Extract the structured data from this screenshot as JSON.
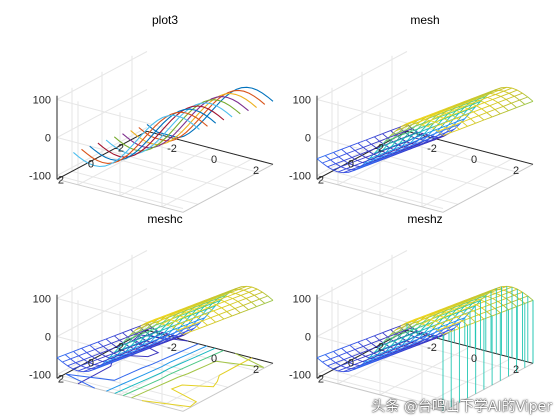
{
  "chart_data": [
    {
      "type": "line3d",
      "title": "plot3",
      "function": "z = 100 * sin(x) * ... (sinusoidal surface, lines along x)",
      "x_ticks": [
        "-2",
        "0",
        "2"
      ],
      "y_ticks": [
        "-2",
        "0",
        "2"
      ],
      "z_ticks": [
        "-100",
        "0",
        "100"
      ],
      "xlim": [
        -3,
        3
      ],
      "ylim": [
        -3,
        3
      ],
      "zlim": [
        -110,
        110
      ],
      "line_count": 10
    },
    {
      "type": "mesh",
      "title": "mesh",
      "x_ticks": [
        "-2",
        "0",
        "2"
      ],
      "y_ticks": [
        "-2",
        "0",
        "2"
      ],
      "z_ticks": [
        "-100",
        "0",
        "100"
      ],
      "xlim": [
        -3,
        3
      ],
      "ylim": [
        -3,
        3
      ],
      "zlim": [
        -110,
        110
      ]
    },
    {
      "type": "meshc",
      "title": "meshc",
      "x_ticks": [
        "-2",
        "0",
        "2"
      ],
      "y_ticks": [
        "-2",
        "0",
        "2"
      ],
      "z_ticks": [
        "-100",
        "0",
        "100"
      ],
      "xlim": [
        -3,
        3
      ],
      "ylim": [
        -3,
        3
      ],
      "zlim": [
        -110,
        110
      ]
    },
    {
      "type": "meshz",
      "title": "meshz",
      "x_ticks": [
        "-2",
        "0",
        "2"
      ],
      "y_ticks": [
        "-2",
        "0",
        "2"
      ],
      "z_ticks": [
        "-100",
        "0",
        "100"
      ],
      "xlim": [
        -3,
        3
      ],
      "ylim": [
        -3,
        3
      ],
      "zlim": [
        -110,
        110
      ]
    }
  ],
  "colormap": [
    "#3d26a8",
    "#3a55e6",
    "#2a86fb",
    "#14acd6",
    "#1ec4a9",
    "#72cc6a",
    "#c4c12c",
    "#f5d91d"
  ],
  "plot3_colors": [
    "#0072bd",
    "#d95319",
    "#edb120",
    "#7e2f8e",
    "#77ac30",
    "#4dbeee",
    "#a2142f",
    "#0072bd",
    "#d95319",
    "#4dbeee"
  ],
  "watermark": "头条 @台鸣山下学AI的Viper"
}
